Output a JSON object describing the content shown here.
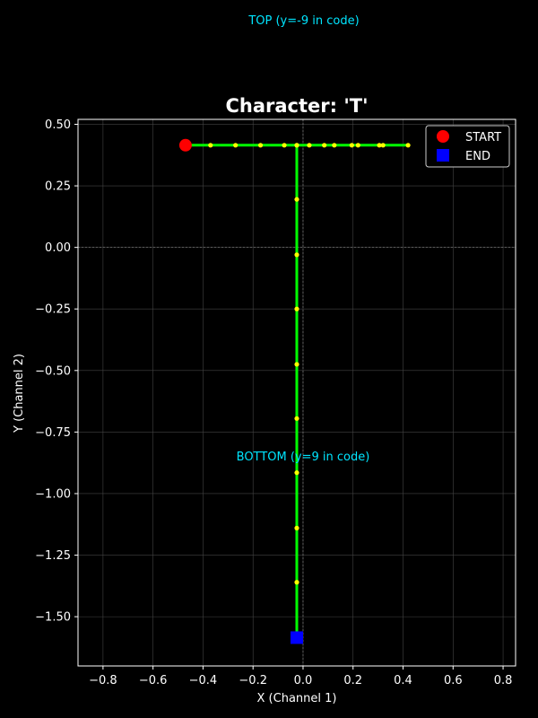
{
  "chart_data": {
    "type": "line",
    "title": "Character: 'T'",
    "xlabel": "X (Channel 1)",
    "ylabel": "Y (Channel 2)",
    "xlim": [
      -0.9,
      0.85
    ],
    "ylim": [
      -1.7,
      0.52
    ],
    "x_ticks": [
      -0.8,
      -0.6,
      -0.4,
      -0.2,
      0.0,
      0.2,
      0.4,
      0.6,
      0.8
    ],
    "x_tick_labels": [
      "−0.8",
      "−0.6",
      "−0.4",
      "−0.2",
      "0.0",
      "0.2",
      "0.4",
      "0.6",
      "0.8"
    ],
    "y_ticks": [
      0.5,
      0.25,
      0.0,
      -0.25,
      -0.5,
      -0.75,
      -1.0,
      -1.25,
      -1.5
    ],
    "y_tick_labels": [
      "0.50",
      "0.25",
      "0.00",
      "−0.25",
      "−0.50",
      "−0.75",
      "−1.00",
      "−1.25",
      "−1.50"
    ],
    "grid": true,
    "zero_lines": true,
    "legend_position": "top-right",
    "stroke": {
      "points": [
        {
          "x": -0.47,
          "y": 0.415
        },
        {
          "x": -0.37,
          "y": 0.415
        },
        {
          "x": -0.27,
          "y": 0.415
        },
        {
          "x": -0.17,
          "y": 0.415
        },
        {
          "x": -0.075,
          "y": 0.415
        },
        {
          "x": -0.025,
          "y": 0.415
        },
        {
          "x": 0.025,
          "y": 0.415
        },
        {
          "x": 0.085,
          "y": 0.415
        },
        {
          "x": 0.125,
          "y": 0.415
        },
        {
          "x": 0.195,
          "y": 0.415
        },
        {
          "x": 0.22,
          "y": 0.415
        },
        {
          "x": 0.305,
          "y": 0.415
        },
        {
          "x": 0.32,
          "y": 0.415
        },
        {
          "x": 0.42,
          "y": 0.415
        },
        {
          "x": -0.025,
          "y": 0.415
        },
        {
          "x": -0.025,
          "y": 0.195
        },
        {
          "x": -0.025,
          "y": -0.03
        },
        {
          "x": -0.025,
          "y": -0.25
        },
        {
          "x": -0.025,
          "y": -0.475
        },
        {
          "x": -0.025,
          "y": -0.695
        },
        {
          "x": -0.025,
          "y": -0.915
        },
        {
          "x": -0.025,
          "y": -1.14
        },
        {
          "x": -0.025,
          "y": -1.36
        },
        {
          "x": -0.025,
          "y": -1.585
        }
      ],
      "line_color": "#00ff00",
      "marker_color": "#ffff00"
    },
    "start": {
      "x": -0.47,
      "y": 0.415,
      "label": "START",
      "color": "#ff0000"
    },
    "end": {
      "x": -0.025,
      "y": -1.585,
      "label": "END",
      "color": "#0000ff"
    },
    "annotations": [
      {
        "text": "TOP (y=-9 in code)",
        "color": "#00e5ff"
      },
      {
        "text": "BOTTOM (y=9 in code)",
        "x": 0.0,
        "y": -0.88,
        "color": "#00e5ff"
      }
    ],
    "colors": {
      "background": "#000000",
      "axes": "#ffffff",
      "grid": "#444444",
      "zero_line": "#888888"
    }
  }
}
